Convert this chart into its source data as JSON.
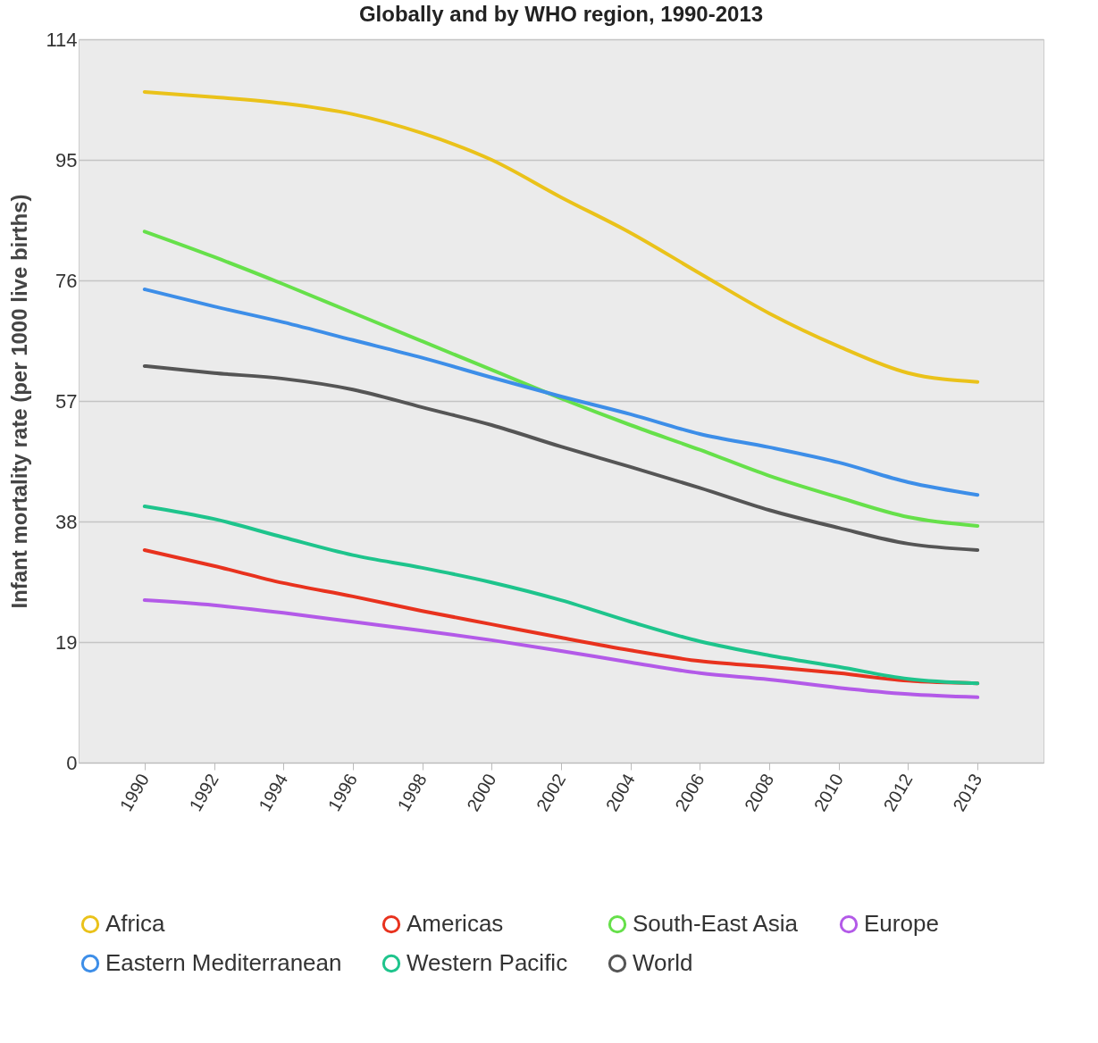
{
  "chart_data": {
    "type": "line",
    "title": "Globally and by WHO region, 1990-2013",
    "ylabel": "Infant mortality rate (per 1000 live births)",
    "categories": [
      "1990",
      "1992",
      "1994",
      "1996",
      "1998",
      "2000",
      "2002",
      "2004",
      "2006",
      "2008",
      "2010",
      "2012",
      "2013"
    ],
    "ylim": [
      0,
      114
    ],
    "yticks": [
      0,
      19,
      38,
      57,
      76,
      95,
      114
    ],
    "grid": "y",
    "legend": "bottom",
    "series": [
      {
        "name": "Africa",
        "color": "#eac21a",
        "values": [
          105.7,
          104.9,
          103.9,
          102.2,
          99.2,
          95,
          89.1,
          83.5,
          77.1,
          70.8,
          65.6,
          61.4,
          60
        ]
      },
      {
        "name": "Americas",
        "color": "#e8321e",
        "values": [
          33.5,
          31,
          28.3,
          26.2,
          23.9,
          21.8,
          19.7,
          17.7,
          16,
          15.1,
          14.1,
          12.9,
          12.5
        ]
      },
      {
        "name": "South-East Asia",
        "color": "#66e04a",
        "values": [
          83.7,
          79.7,
          75.4,
          70.9,
          66.4,
          61.9,
          57.4,
          53.2,
          49.3,
          45.2,
          41.8,
          38.7,
          37.3
        ]
      },
      {
        "name": "Europe",
        "color": "#b35ae8",
        "values": [
          25.6,
          24.8,
          23.6,
          22.2,
          20.8,
          19.3,
          17.6,
          15.8,
          14.1,
          13.1,
          11.8,
          10.8,
          10.3
        ]
      },
      {
        "name": "Eastern Mediterranean",
        "color": "#3d8ee8",
        "values": [
          74.6,
          71.9,
          69.4,
          66.6,
          63.8,
          60.7,
          57.7,
          54.9,
          51.8,
          49.7,
          47.3,
          44.2,
          42.2
        ]
      },
      {
        "name": "Western Pacific",
        "color": "#1ec48c",
        "values": [
          40.4,
          38.4,
          35.5,
          32.7,
          30.7,
          28.4,
          25.6,
          22.2,
          19.1,
          16.9,
          15.1,
          13.2,
          12.5
        ]
      },
      {
        "name": "World",
        "color": "#555555",
        "values": [
          62.5,
          61.4,
          60.5,
          58.8,
          56,
          53.2,
          49.8,
          46.6,
          43.3,
          39.8,
          37,
          34.5,
          33.5
        ]
      }
    ]
  }
}
